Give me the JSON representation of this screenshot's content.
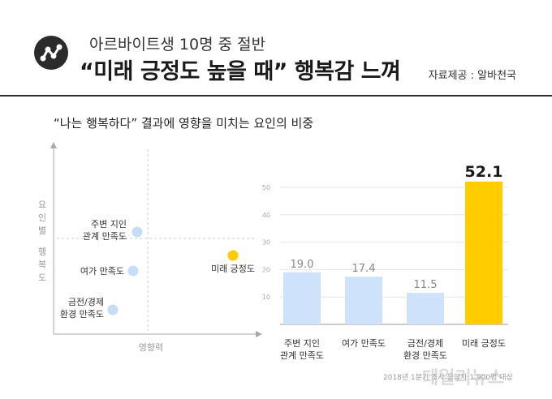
{
  "header": {
    "subtitle": "아르바이트생 10명 중 절반",
    "title": "“미래 긍정도 높을 때” 행복감 느껴",
    "source": "자료제공 : 알바천국",
    "logo_icon": "network-nodes-icon"
  },
  "colors": {
    "accent_yellow": "#ffcc00",
    "bar_blue": "#cfe2fb",
    "dot_blue": "#c6ddf8",
    "dark": "#2b2b2b"
  },
  "footnote": "2018년 1분기 조사 응답자 1,900명 대상",
  "watermark": "데일리뉴스",
  "chart_data": [
    {
      "type": "scatter",
      "title": "“나는 행복하다” 결과에 영향을 미치는 요인의 비중",
      "xlabel": "영향력",
      "ylabel": "요인별 행복도",
      "points": [
        {
          "label_lines": [
            "주변 지인",
            "관계 만족도"
          ],
          "highlight": false
        },
        {
          "label_lines": [
            "여가 만족도"
          ],
          "highlight": false
        },
        {
          "label_lines": [
            "금전/경제",
            "환경 만족도"
          ],
          "highlight": false
        },
        {
          "label_lines": [
            "미래 긍정도"
          ],
          "highlight": true
        }
      ]
    },
    {
      "type": "bar",
      "categories": [
        [
          "주변 지인",
          "관계 만족도"
        ],
        [
          "여가 만족도"
        ],
        [
          "금전/경제",
          "환경 만족도"
        ],
        [
          "미래 긍정도"
        ]
      ],
      "values": [
        19.0,
        17.4,
        11.5,
        52.1
      ],
      "value_labels": [
        "19.0",
        "17.4",
        "11.5",
        "52.1"
      ],
      "highlight_index": 3,
      "ylim": [
        0,
        50
      ],
      "yticks": [
        "0",
        "10",
        "20",
        "30",
        "40",
        "50"
      ],
      "grid": true
    }
  ]
}
